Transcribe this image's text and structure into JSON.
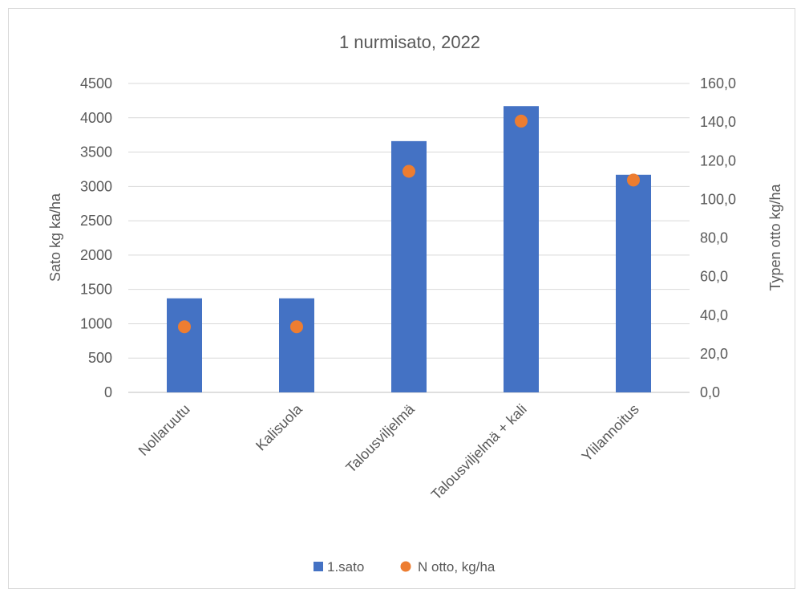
{
  "chart_data": {
    "type": "bar",
    "title": "1 nurmisato, 2022",
    "categories": [
      "Nollaruutu",
      "Kalisuola",
      "Talousviljelmä",
      "Talousviljelmä + kali",
      "Ylilannoitus"
    ],
    "series": [
      {
        "name": "1.sato",
        "type": "bar",
        "axis": "left",
        "color": "#4472C4",
        "values": [
          1370,
          1370,
          3660,
          4170,
          3170
        ]
      },
      {
        "name": "N otto, kg/ha",
        "type": "scatter",
        "axis": "right",
        "color": "#ED7D31",
        "values": [
          34.0,
          34.0,
          114.5,
          140.5,
          110.0
        ]
      }
    ],
    "ylabel": "Sato kg ka/ha",
    "ylim": [
      0,
      4500
    ],
    "yticks": [
      "0",
      "500",
      "1000",
      "1500",
      "2000",
      "2500",
      "3000",
      "3500",
      "4000",
      "4500"
    ],
    "y2label": "Typen otto kg/ha",
    "y2lim": [
      0,
      160
    ],
    "y2ticks": [
      "0,0",
      "20,0",
      "40,0",
      "60,0",
      "80,0",
      "100,0",
      "120,0",
      "140,0",
      "160,0"
    ],
    "grid": true,
    "legend": "bottom"
  }
}
